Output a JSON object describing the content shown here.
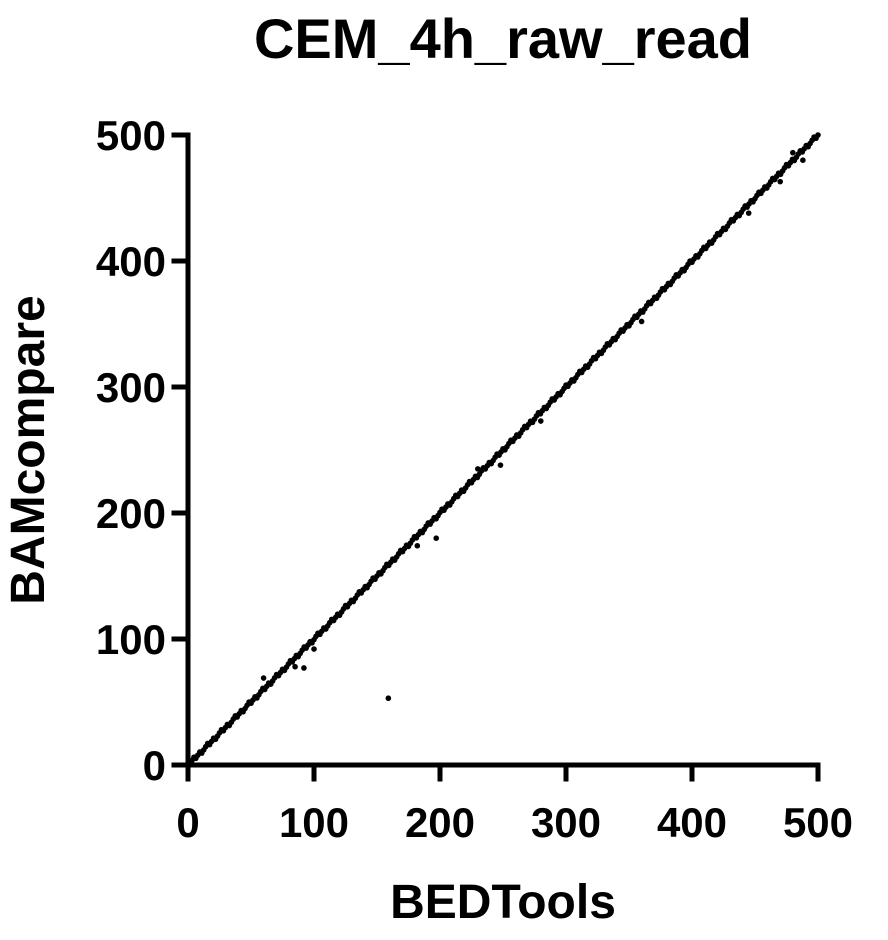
{
  "chart_data": {
    "type": "scatter",
    "title": "CEM_4h_raw_read",
    "xlabel": "BEDTools",
    "ylabel": "BAMcompare",
    "xlim": [
      0,
      500
    ],
    "ylim": [
      0,
      500
    ],
    "xticks": [
      0,
      100,
      200,
      300,
      400,
      500
    ],
    "yticks": [
      0,
      100,
      200,
      300,
      400,
      500
    ],
    "grid": false,
    "point_color": "#000000",
    "series": [
      {
        "points": [
          [
            159,
            53
          ],
          [
            197,
            180
          ],
          [
            85,
            78
          ],
          [
            92,
            77
          ],
          [
            100,
            92
          ],
          [
            60,
            69
          ],
          [
            182,
            174
          ],
          [
            230,
            235
          ],
          [
            248,
            238
          ],
          [
            280,
            273
          ],
          [
            445,
            438
          ],
          [
            488,
            480
          ],
          [
            480,
            486
          ],
          [
            470,
            463
          ],
          [
            360,
            352
          ]
        ],
        "trend": {
          "x_start": 0,
          "x_end": 500,
          "y_start": 0,
          "y_end": 500,
          "count": 320,
          "spread": 1.5
        }
      }
    ]
  }
}
